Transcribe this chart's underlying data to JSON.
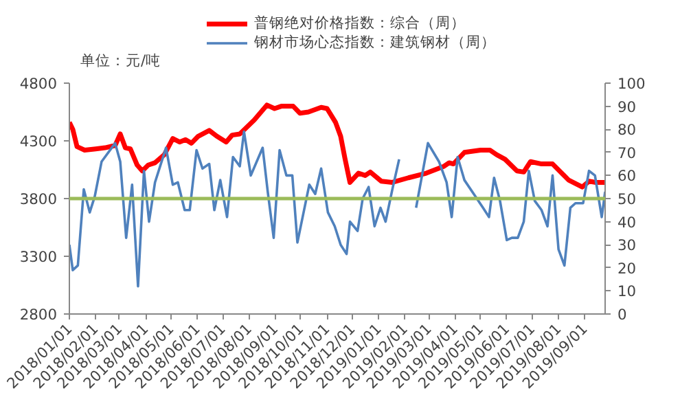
{
  "chart_data": {
    "type": "line",
    "ylabel": "单位：元/吨",
    "series": [
      {
        "name": "普钢绝对价格指数：综合（周）",
        "color": "#ff0000",
        "axis": "y",
        "x": [
          "2018-01-01",
          "2018-01-05",
          "2018-01-10",
          "2018-01-19",
          "2018-02-01",
          "2018-02-12",
          "2018-02-24",
          "2018-03-02",
          "2018-03-08",
          "2018-03-14",
          "2018-03-22",
          "2018-03-28",
          "2018-04-04",
          "2018-04-12",
          "2018-04-23",
          "2018-05-03",
          "2018-05-11",
          "2018-05-18",
          "2018-05-25",
          "2018-06-02",
          "2018-06-15",
          "2018-06-24",
          "2018-07-05",
          "2018-07-12",
          "2018-07-21",
          "2018-08-07",
          "2018-08-22",
          "2018-08-31",
          "2018-09-08",
          "2018-09-22",
          "2018-09-30",
          "2018-10-10",
          "2018-10-25",
          "2018-11-01",
          "2018-11-11",
          "2018-11-17",
          "2018-11-22",
          "2018-11-28",
          "2018-12-08",
          "2018-12-16",
          "2018-12-22",
          "2019-01-04",
          "2019-01-17",
          "2019-02-05",
          "2019-02-26",
          "2019-03-19",
          "2019-03-25",
          "2019-03-30",
          "2019-04-12",
          "2019-05-01",
          "2019-05-12",
          "2019-05-20",
          "2019-05-30",
          "2019-06-13",
          "2019-06-21",
          "2019-06-29",
          "2019-07-12",
          "2019-07-25",
          "2019-08-13",
          "2019-08-29",
          "2019-09-06",
          "2019-09-14",
          "2019-09-25"
        ],
        "values": [
          4460,
          4400,
          4250,
          4220,
          4230,
          4240,
          4260,
          4360,
          4240,
          4230,
          4090,
          4040,
          4090,
          4110,
          4180,
          4320,
          4290,
          4310,
          4280,
          4340,
          4390,
          4340,
          4290,
          4350,
          4360,
          4480,
          4610,
          4580,
          4600,
          4600,
          4540,
          4550,
          4590,
          4580,
          4460,
          4340,
          4150,
          3940,
          4020,
          4000,
          4030,
          3950,
          3940,
          3980,
          4020,
          4080,
          4110,
          4100,
          4200,
          4220,
          4220,
          4180,
          4140,
          4040,
          4030,
          4120,
          4100,
          4100,
          3960,
          3900,
          3950,
          3940,
          3940
        ]
      },
      {
        "name": "钢材市场心态指数：建筑钢材（周）",
        "color": "#4f81bd",
        "axis": "y2",
        "x": [
          "2018-01-01",
          "2018-01-05",
          "2018-01-11",
          "2018-01-18",
          "2018-01-25",
          "2018-01-31",
          "2018-02-08",
          "2018-02-24",
          "2018-03-02",
          "2018-03-09",
          "2018-03-16",
          "2018-03-23",
          "2018-03-30",
          "2018-04-05",
          "2018-04-12",
          "2018-04-25",
          "2018-05-03",
          "2018-05-09",
          "2018-05-17",
          "2018-05-23",
          "2018-05-31",
          "2018-06-07",
          "2018-06-15",
          "2018-06-21",
          "2018-06-28",
          "2018-07-06",
          "2018-07-13",
          "2018-07-21",
          "2018-07-26",
          "2018-08-03",
          "2018-08-17",
          "2018-08-23",
          "2018-08-30",
          "2018-09-06",
          "2018-09-14",
          "2018-09-21",
          "2018-09-27",
          "2018-10-11",
          "2018-10-18",
          "2018-10-25",
          "2018-11-02",
          "2018-11-10",
          "2018-11-17",
          "2018-11-24",
          "2018-11-28",
          "2018-12-07",
          "2018-12-13",
          "2018-12-20",
          "2018-12-27",
          "2019-01-03",
          "2019-01-09",
          "2019-01-17",
          "2019-01-25",
          "2019-02-07",
          "2019-02-14",
          "2019-02-28",
          "2019-03-13",
          "2019-03-22",
          "2019-03-28",
          "2019-04-04",
          "2019-04-12",
          "2019-04-23",
          "2019-05-04",
          "2019-05-11",
          "2019-05-17",
          "2019-05-24",
          "2019-06-01",
          "2019-06-07",
          "2019-06-14",
          "2019-06-21",
          "2019-06-27",
          "2019-07-04",
          "2019-07-12",
          "2019-07-19",
          "2019-07-25",
          "2019-08-01",
          "2019-08-08",
          "2019-08-15",
          "2019-08-21",
          "2019-08-30",
          "2019-09-06",
          "2019-09-13",
          "2019-09-21",
          "2019-09-25"
        ],
        "values": [
          30,
          19,
          21,
          54,
          44,
          51,
          66,
          74,
          66,
          33,
          56,
          12,
          62,
          40,
          57,
          72,
          56,
          57,
          45,
          45,
          71,
          63,
          65,
          45,
          58,
          42,
          68,
          64,
          79,
          60,
          72,
          53,
          33,
          71,
          60,
          60,
          31,
          56,
          52,
          63,
          44,
          38,
          30,
          26,
          40,
          36,
          50,
          55,
          38,
          46,
          40,
          54,
          67,
          null,
          46,
          74,
          66,
          57,
          42,
          68,
          58,
          52,
          46,
          42,
          59,
          49,
          32,
          33,
          33,
          40,
          62,
          49,
          45,
          38,
          60,
          28,
          21,
          46,
          48,
          48,
          62,
          60,
          42,
          53
        ]
      }
    ],
    "xlim": [
      "2018-01-01",
      "2019-09-25"
    ],
    "xticks": [
      {
        "value": "2018-01-01",
        "label": "2018/01/01"
      },
      {
        "value": "2018-02-01",
        "label": "2018/02/01"
      },
      {
        "value": "2018-03-01",
        "label": "2018/03/01"
      },
      {
        "value": "2018-04-01",
        "label": "2018/04/01"
      },
      {
        "value": "2018-05-01",
        "label": "2018/05/01"
      },
      {
        "value": "2018-06-01",
        "label": "2018/06/01"
      },
      {
        "value": "2018-07-01",
        "label": "2018/07/01"
      },
      {
        "value": "2018-08-01",
        "label": "2018/08/01"
      },
      {
        "value": "2018-09-01",
        "label": "2018/09/01"
      },
      {
        "value": "2018-10-01",
        "label": "2018/10/01"
      },
      {
        "value": "2018-11-01",
        "label": "2018/11/01"
      },
      {
        "value": "2018-12-01",
        "label": "2018/12/01"
      },
      {
        "value": "2019-01-01",
        "label": "2019/01/01"
      },
      {
        "value": "2019-02-01",
        "label": "2019/02/01"
      },
      {
        "value": "2019-03-01",
        "label": "2019/03/01"
      },
      {
        "value": "2019-04-01",
        "label": "2019/04/01"
      },
      {
        "value": "2019-05-01",
        "label": "2019/05/01"
      },
      {
        "value": "2019-06-01",
        "label": "2019/06/01"
      },
      {
        "value": "2019-07-01",
        "label": "2019/07/01"
      },
      {
        "value": "2019-08-01",
        "label": "2019/08/01"
      },
      {
        "value": "2019-09-01",
        "label": "2019/09/01"
      }
    ],
    "ylim": [
      2800,
      4800
    ],
    "yticks": [
      2800,
      3300,
      3800,
      4300,
      4800
    ],
    "y2lim": [
      0,
      100
    ],
    "y2ticks": [
      0,
      10,
      20,
      30,
      40,
      50,
      60,
      70,
      80,
      90,
      100
    ],
    "ref_lines": [
      {
        "axis": "y",
        "value": 3800,
        "color": "#9bbb59"
      }
    ],
    "grid": false,
    "legend": "top",
    "marker": "none",
    "line_style": "solid"
  }
}
